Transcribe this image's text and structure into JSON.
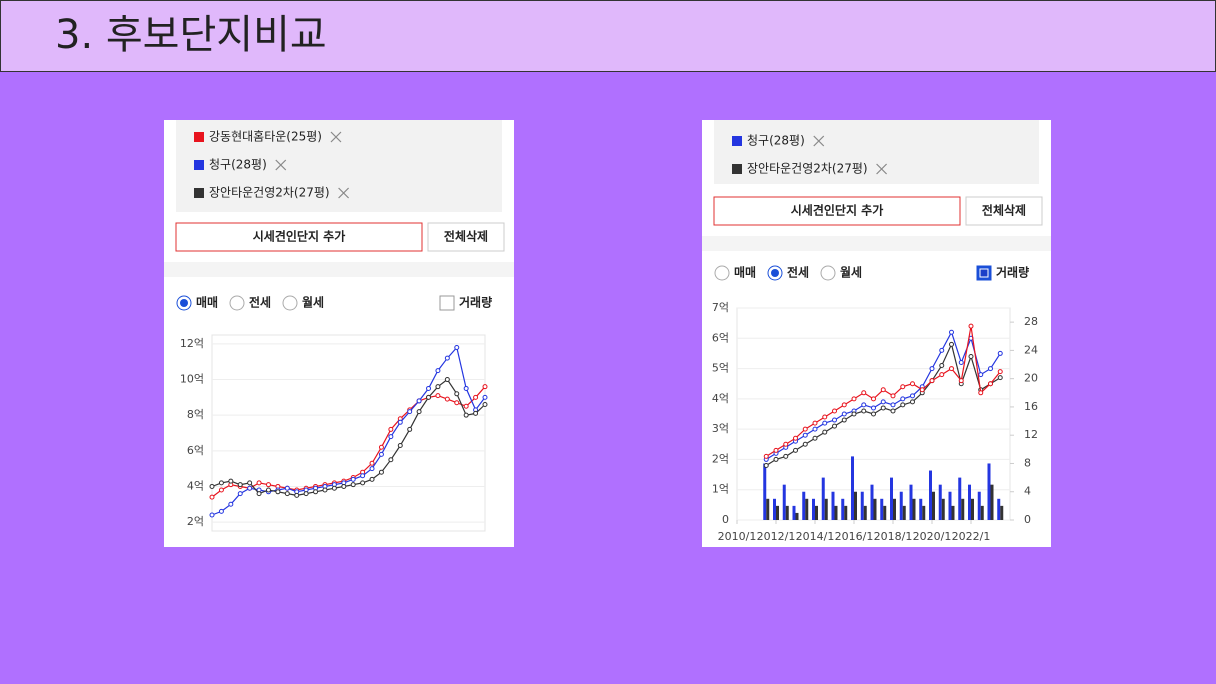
{
  "slide": {
    "title": "3. 후보단지비교"
  },
  "panels": [
    {
      "buttons": [
        "시세견인단지 추가",
        "전체삭제"
      ],
      "options": [
        "매매",
        "전세",
        "월세"
      ],
      "selected_option": 0,
      "toggle": "거래량",
      "toggle_checked": false
    },
    {
      "buttons": [
        "시세견인단지 추가",
        "전체삭제"
      ],
      "options": [
        "매매",
        "전세",
        "월세"
      ],
      "selected_option": 1,
      "toggle": "거래량",
      "toggle_checked": true
    }
  ],
  "chart_data": [
    {
      "type": "line",
      "grid": true,
      "ylim": [
        1.5,
        12.5
      ],
      "yticks": [
        {
          "value": 2,
          "label": "2억"
        },
        {
          "value": 4,
          "label": "4억"
        },
        {
          "value": 6,
          "label": "6억"
        },
        {
          "value": 8,
          "label": "8억"
        },
        {
          "value": 10,
          "label": "10억"
        },
        {
          "value": 12,
          "label": "12억"
        }
      ],
      "series": [
        {
          "name": "강동현대홈타운(25평)",
          "color": "#e8141e",
          "values": [
            3.4,
            3.8,
            4.1,
            4.0,
            3.9,
            4.2,
            4.1,
            4.0,
            3.9,
            3.8,
            3.9,
            4.0,
            4.1,
            4.2,
            4.3,
            4.5,
            4.8,
            5.3,
            6.2,
            7.2,
            7.8,
            8.3,
            8.8,
            9.0,
            9.1,
            8.9,
            8.7,
            8.5,
            9.0,
            9.6
          ]
        },
        {
          "name": "청구(28평)",
          "color": "#2436e0",
          "values": [
            2.4,
            2.6,
            3.0,
            3.6,
            3.9,
            3.8,
            3.7,
            3.8,
            3.9,
            3.7,
            3.8,
            3.9,
            4.0,
            4.1,
            4.2,
            4.4,
            4.6,
            5.0,
            5.8,
            6.8,
            7.6,
            8.2,
            8.8,
            9.5,
            10.5,
            11.2,
            11.8,
            9.5,
            8.3,
            9.0
          ]
        },
        {
          "name": "장안타운건영2차(27평)",
          "color": "#333333",
          "values": [
            4.0,
            4.2,
            4.3,
            4.1,
            4.2,
            3.6,
            3.8,
            3.7,
            3.6,
            3.5,
            3.6,
            3.7,
            3.8,
            3.9,
            4.0,
            4.1,
            4.2,
            4.4,
            4.8,
            5.5,
            6.3,
            7.2,
            8.2,
            9.0,
            9.6,
            10.0,
            9.2,
            8.0,
            8.1,
            8.6
          ]
        }
      ]
    },
    {
      "type": "line",
      "grid": true,
      "x": [
        2011.5,
        2012,
        2012.5,
        2013,
        2013.5,
        2014,
        2014.5,
        2015,
        2015.5,
        2016,
        2016.5,
        2017,
        2017.5,
        2018,
        2018.5,
        2019,
        2019.5,
        2020,
        2020.5,
        2021,
        2021.5,
        2022,
        2022.5,
        2023,
        2023.5
      ],
      "xlim": [
        2010,
        2024
      ],
      "xticks": [
        {
          "value": 2010,
          "label": "2010/1"
        },
        {
          "value": 2012,
          "label": "2012/1"
        },
        {
          "value": 2014,
          "label": "2014/1"
        },
        {
          "value": 2016,
          "label": "2016/1"
        },
        {
          "value": 2018,
          "label": "2018/1"
        },
        {
          "value": 2020,
          "label": "2020/1"
        },
        {
          "value": 2022,
          "label": "2022/1"
        }
      ],
      "ylim": [
        0,
        7
      ],
      "yticks": [
        0,
        {
          "value": 1,
          "label": "1억"
        },
        {
          "value": 2,
          "label": "2억"
        },
        {
          "value": 3,
          "label": "3억"
        },
        {
          "value": 4,
          "label": "4억"
        },
        {
          "value": 5,
          "label": "5억"
        },
        {
          "value": 6,
          "label": "6억"
        },
        {
          "value": 7,
          "label": "7억"
        }
      ],
      "y2lim": [
        0,
        30
      ],
      "y2ticks": [
        0,
        4,
        8,
        12,
        16,
        20,
        24,
        28
      ],
      "series": [
        {
          "name": "청구(28평)",
          "color": "#2436e0",
          "values": [
            2.0,
            2.2,
            2.4,
            2.6,
            2.8,
            3.0,
            3.2,
            3.3,
            3.5,
            3.6,
            3.8,
            3.7,
            3.9,
            3.8,
            4.0,
            4.1,
            4.4,
            5.0,
            5.6,
            6.2,
            5.2,
            6.0,
            4.8,
            5.0,
            5.5
          ]
        },
        {
          "name": "장안타운건영2차(27평)",
          "color": "#333333",
          "values": [
            1.8,
            2.0,
            2.1,
            2.3,
            2.5,
            2.7,
            2.9,
            3.1,
            3.3,
            3.5,
            3.6,
            3.5,
            3.7,
            3.6,
            3.8,
            3.9,
            4.2,
            4.6,
            5.1,
            5.8,
            4.5,
            5.4,
            4.3,
            4.5,
            4.7
          ]
        },
        {
          "color": "#e8141e",
          "values": [
            2.1,
            2.3,
            2.5,
            2.7,
            3.0,
            3.2,
            3.4,
            3.6,
            3.8,
            4.0,
            4.2,
            4.0,
            4.3,
            4.1,
            4.4,
            4.5,
            4.3,
            4.6,
            4.8,
            5.0,
            4.6,
            6.4,
            4.2,
            4.5,
            4.9
          ]
        },
        {
          "type": "bar",
          "axis": "y2",
          "color": "#2436e0",
          "values": [
            8,
            3,
            5,
            2,
            4,
            3,
            6,
            4,
            3,
            9,
            4,
            5,
            3,
            6,
            4,
            5,
            3,
            7,
            5,
            4,
            6,
            5,
            4,
            8,
            3
          ]
        },
        {
          "type": "bar",
          "axis": "y2",
          "color": "#333333",
          "values": [
            3,
            2,
            2,
            1,
            3,
            2,
            3,
            2,
            2,
            4,
            2,
            3,
            2,
            3,
            2,
            3,
            2,
            4,
            3,
            2,
            3,
            3,
            2,
            5,
            2
          ]
        }
      ]
    }
  ]
}
